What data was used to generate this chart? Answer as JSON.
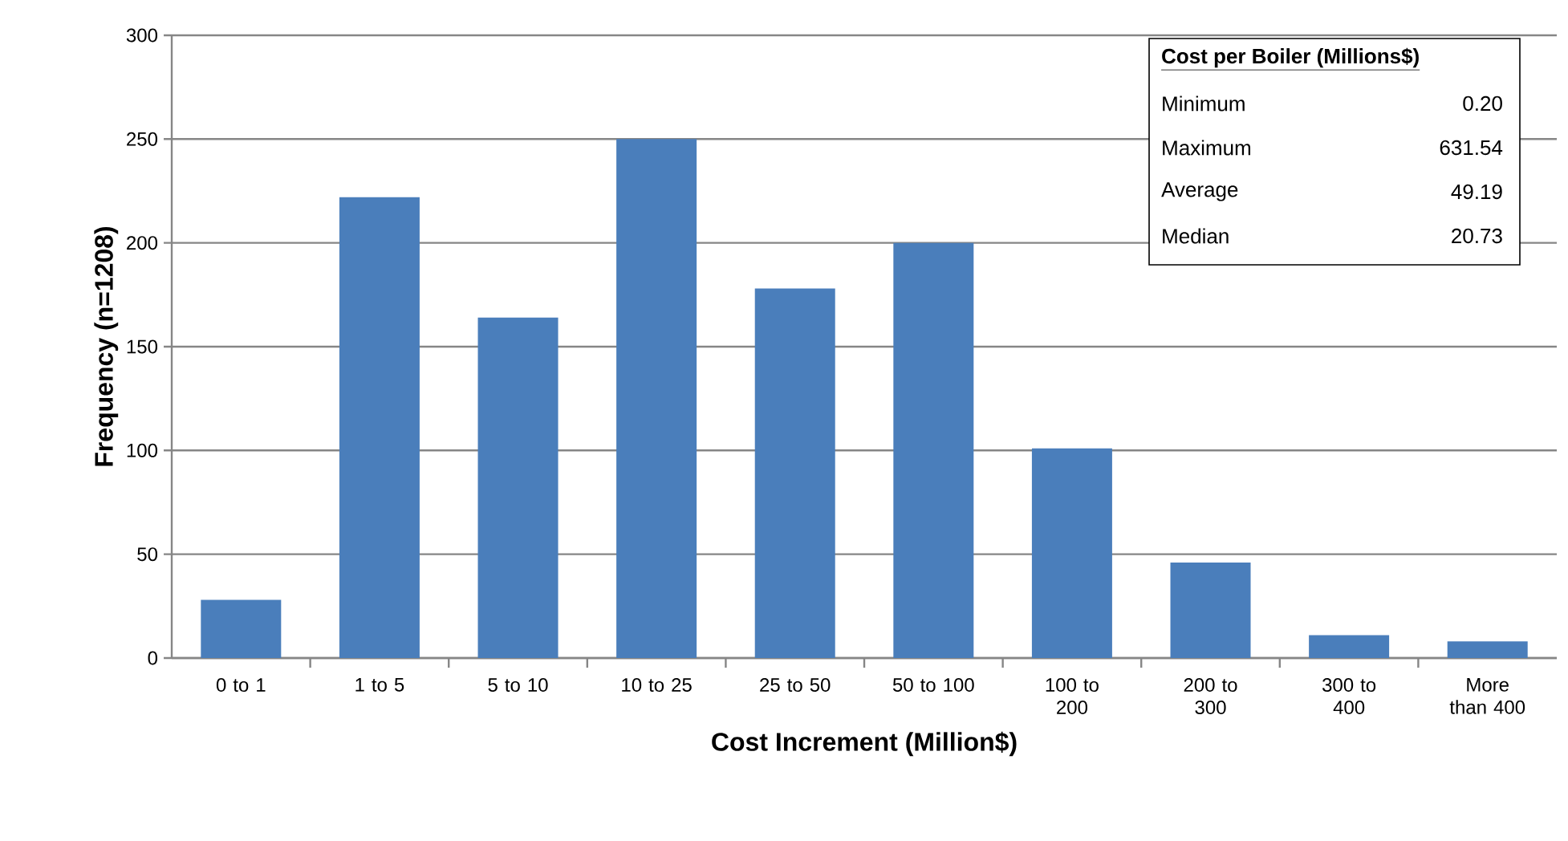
{
  "chart_data": {
    "type": "bar",
    "xlabel": "Cost Increment (Million$)",
    "ylabel": "Frequency (n=1208)",
    "categories": [
      "0 to 1",
      "1 to 5",
      "5 to 10",
      "10 to 25",
      "25 to 50",
      "50 to 100",
      "100 to 200",
      "200 to 300",
      "300 to 400",
      "More than 400"
    ],
    "values": [
      28,
      222,
      164,
      250,
      178,
      200,
      101,
      46,
      11,
      8
    ],
    "color": "#4a7ebb",
    "ylim": [
      0,
      300
    ],
    "yticks": [
      0,
      50,
      100,
      150,
      200,
      250,
      300
    ],
    "grid": "y",
    "annotations": [
      "Cost per Boiler (Millions$)",
      "Minimum",
      "0.20",
      "Maximum",
      "631.54",
      "Average",
      "49.19",
      "Median",
      "20.73"
    ]
  }
}
